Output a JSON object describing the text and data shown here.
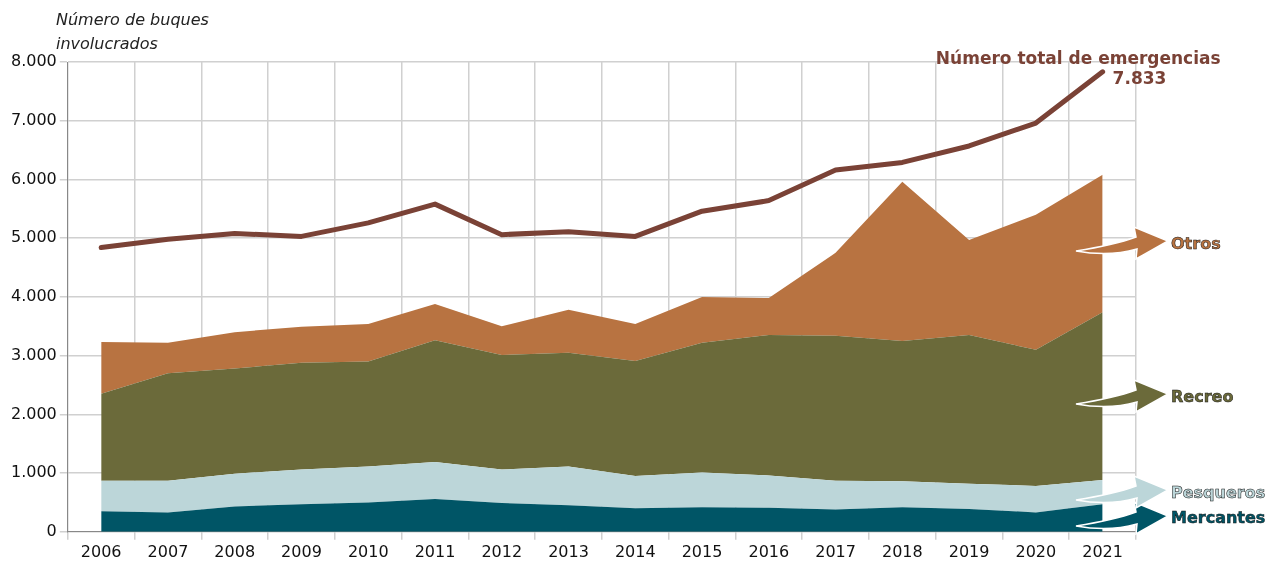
{
  "chart_data": {
    "type": "area",
    "stacked": true,
    "ylabel": "Número de buques involucrados",
    "categories": [
      "2006",
      "2007",
      "2008",
      "2009",
      "2010",
      "2011",
      "2012",
      "2013",
      "2014",
      "2015",
      "2016",
      "2017",
      "2018",
      "2019",
      "2020",
      "2021"
    ],
    "series": [
      {
        "name": "Mercantes",
        "color": "#005566",
        "values": [
          350,
          330,
          430,
          470,
          500,
          560,
          490,
          450,
          400,
          420,
          410,
          380,
          420,
          390,
          330,
          470
        ]
      },
      {
        "name": "Pesqueros",
        "color": "#bcd6d9",
        "values": [
          520,
          540,
          560,
          590,
          610,
          630,
          570,
          660,
          550,
          590,
          550,
          490,
          440,
          430,
          450,
          410
        ]
      },
      {
        "name": "Recreo",
        "color": "#6b6a3a",
        "values": [
          1480,
          1830,
          1790,
          1820,
          1790,
          2070,
          1950,
          1940,
          1960,
          2210,
          2390,
          2470,
          2390,
          2530,
          2320,
          2860
        ]
      },
      {
        "name": "Otros",
        "color": "#b87341",
        "values": [
          880,
          520,
          620,
          610,
          640,
          620,
          490,
          730,
          630,
          780,
          630,
          1410,
          2710,
          1620,
          2300,
          2340
        ]
      },
      {
        "name": "Número total de emergencias",
        "type": "line",
        "color": "#7a4236",
        "values": [
          4840,
          4980,
          5080,
          5030,
          5260,
          5580,
          5060,
          5110,
          5030,
          5460,
          5640,
          6160,
          6290,
          6570,
          6960,
          7833
        ],
        "value_labels": [
          null,
          null,
          null,
          null,
          null,
          null,
          null,
          null,
          null,
          null,
          null,
          null,
          null,
          null,
          null,
          "7.833"
        ]
      }
    ],
    "ylim": [
      0,
      8000
    ],
    "yticks": [
      0,
      {
        "value": 1000,
        "label": "1.000"
      },
      {
        "value": 2000,
        "label": "2.000"
      },
      {
        "value": 3000,
        "label": "3.000"
      },
      {
        "value": 4000,
        "label": "4.000"
      },
      {
        "value": 5000,
        "label": "5.000"
      },
      {
        "value": 6000,
        "label": "6.000"
      },
      {
        "value": 7000,
        "label": "7.000"
      },
      {
        "value": 8000,
        "label": "8.000"
      }
    ],
    "grid": true,
    "legend": false,
    "marker": "none",
    "line_style": "solid"
  }
}
